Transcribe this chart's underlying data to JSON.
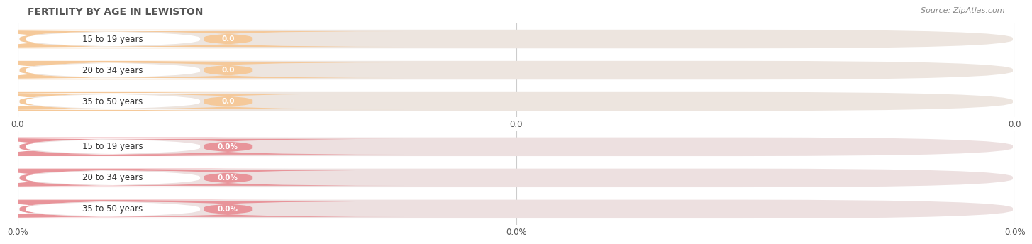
{
  "title": "FERTILITY BY AGE IN LEWISTON",
  "source": "Source: ZipAtlas.com",
  "top_group": {
    "labels": [
      "15 to 19 years",
      "20 to 34 years",
      "35 to 50 years"
    ],
    "values": [
      0.0,
      0.0,
      0.0
    ],
    "bar_color": "#F5C99A",
    "bar_bg_color": "#EDE5DF",
    "value_label": "0.0",
    "tick_labels": [
      "0.0",
      "0.0",
      "0.0"
    ]
  },
  "bottom_group": {
    "labels": [
      "15 to 19 years",
      "20 to 34 years",
      "35 to 50 years"
    ],
    "values": [
      0.0,
      0.0,
      0.0
    ],
    "bar_color": "#E8949A",
    "bar_bg_color": "#EDE0E0",
    "value_label": "0.0%",
    "tick_labels": [
      "0.0%",
      "0.0%",
      "0.0%"
    ]
  },
  "background_color": "#FFFFFF",
  "grid_color": "#CCCCCC",
  "title_color": "#555555",
  "label_color": "#333333",
  "source_color": "#888888",
  "fig_width": 14.06,
  "fig_height": 3.3
}
